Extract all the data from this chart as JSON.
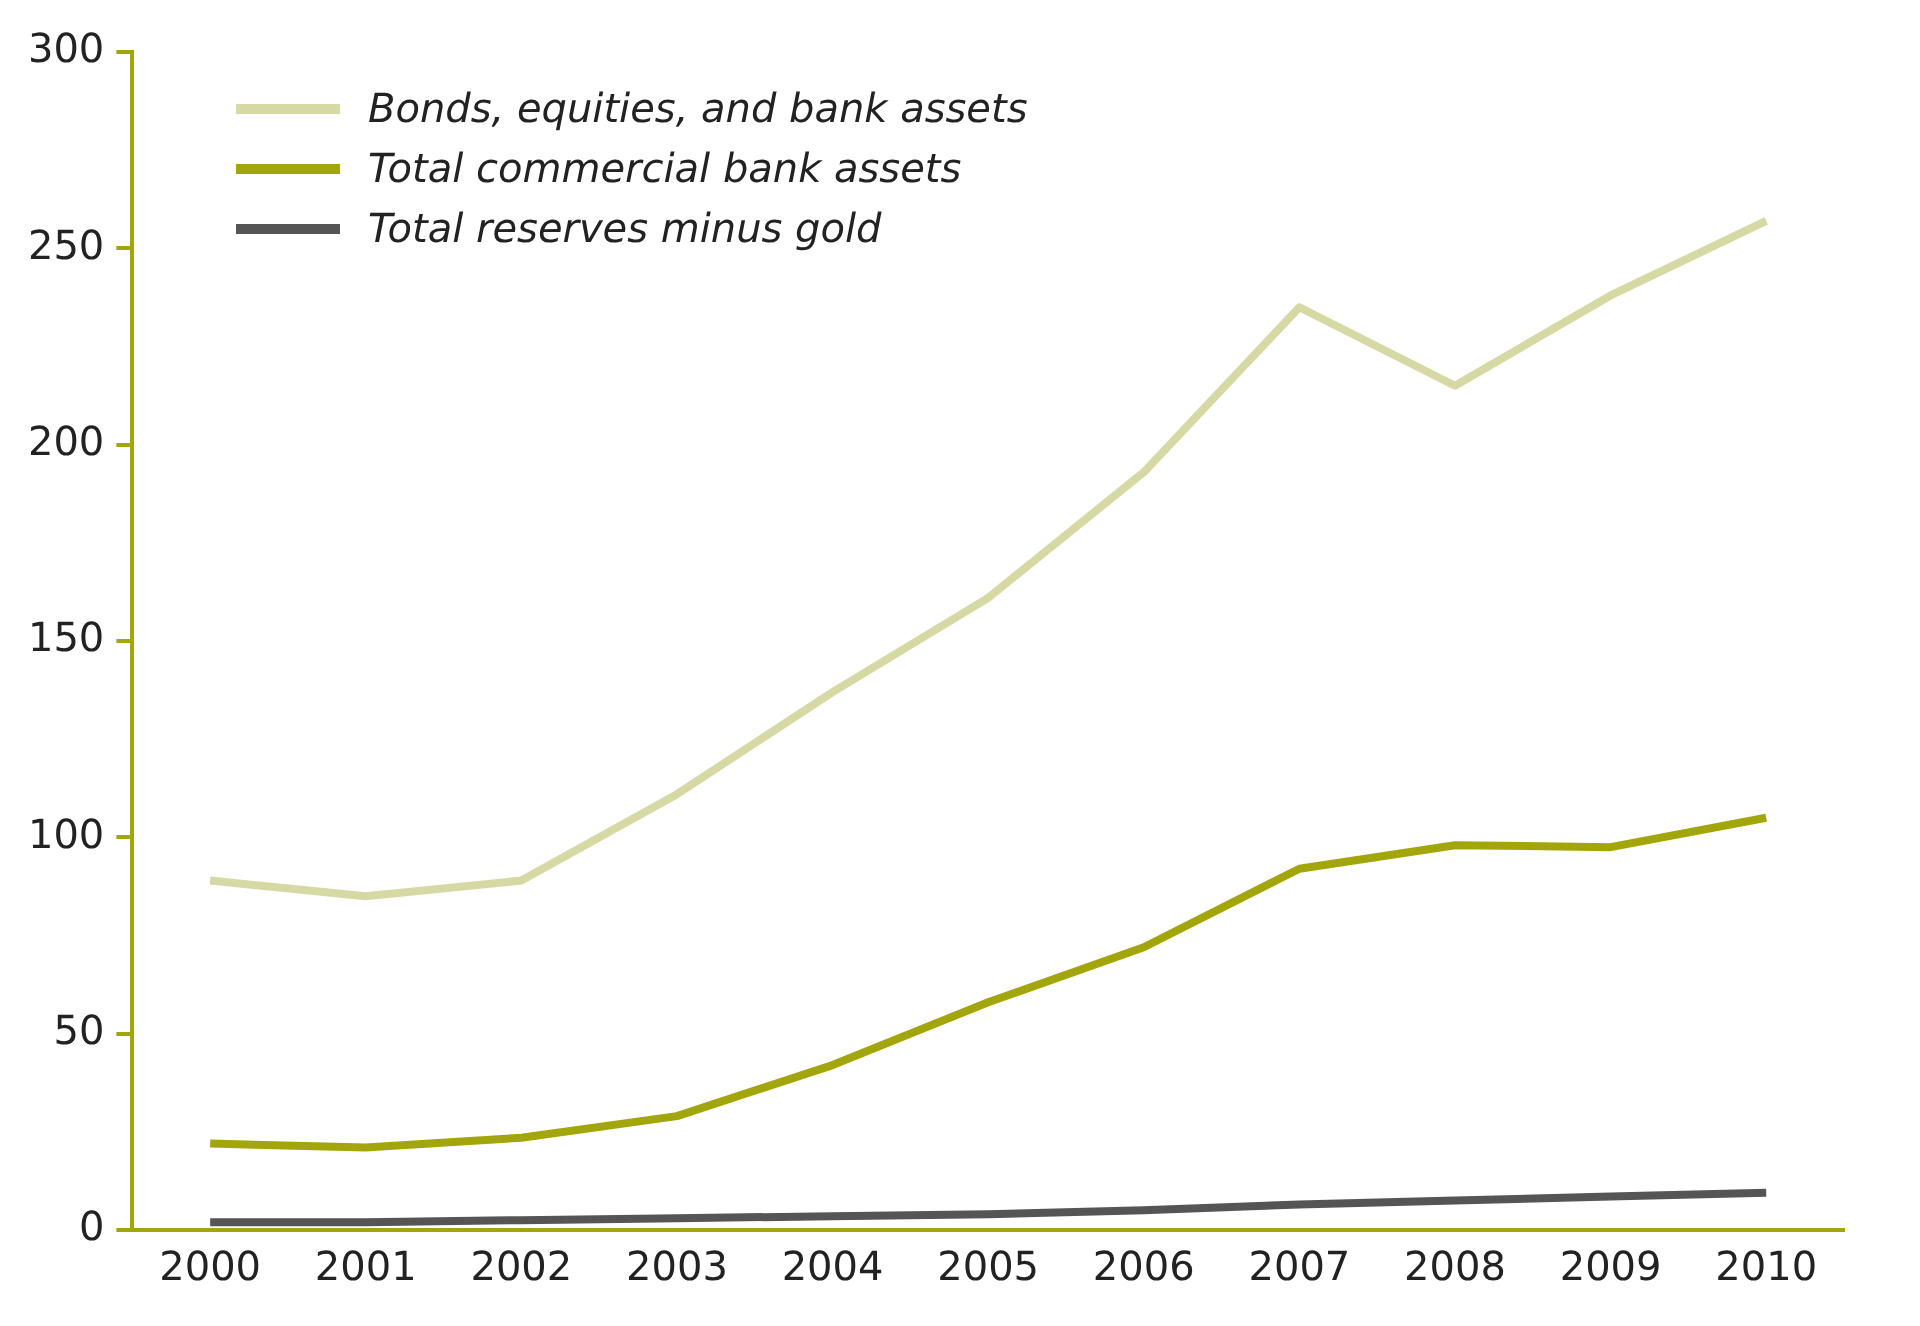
{
  "chart_data": {
    "type": "line",
    "categories": [
      "2000",
      "2001",
      "2002",
      "2003",
      "2004",
      "2005",
      "2006",
      "2007",
      "2008",
      "2009",
      "2010"
    ],
    "series": [
      {
        "name": "Bonds, equities, and bank assets",
        "color": "#d6d9a3",
        "values": [
          89,
          85,
          89,
          111,
          137,
          161,
          193,
          235,
          215,
          238,
          257
        ]
      },
      {
        "name": "Total commercial bank assets",
        "color": "#a3a60a",
        "values": [
          22,
          21,
          23.5,
          29,
          42,
          58,
          72,
          92,
          98,
          97.5,
          105
        ]
      },
      {
        "name": "Total reserves minus gold",
        "color": "#555555",
        "values": [
          2,
          2,
          2.5,
          3,
          3.5,
          4,
          5,
          6.5,
          7.5,
          8.5,
          9.5
        ]
      }
    ],
    "ylim": [
      0,
      300
    ],
    "yticks": [
      0,
      50,
      100,
      150,
      200,
      250,
      300
    ],
    "grid": false,
    "legend": "top left",
    "marker": "none",
    "line_style": "solid"
  }
}
